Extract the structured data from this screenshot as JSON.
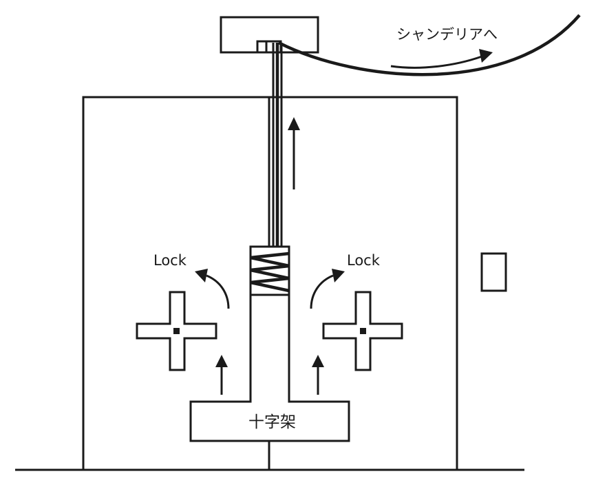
{
  "labels": {
    "chandelier": "シャンデリアへ",
    "lock_left": "Lock",
    "lock_right": "Lock",
    "crossbar": "十字架"
  },
  "colors": {
    "ink": "#1a1a1a",
    "background": "#ffffff"
  }
}
